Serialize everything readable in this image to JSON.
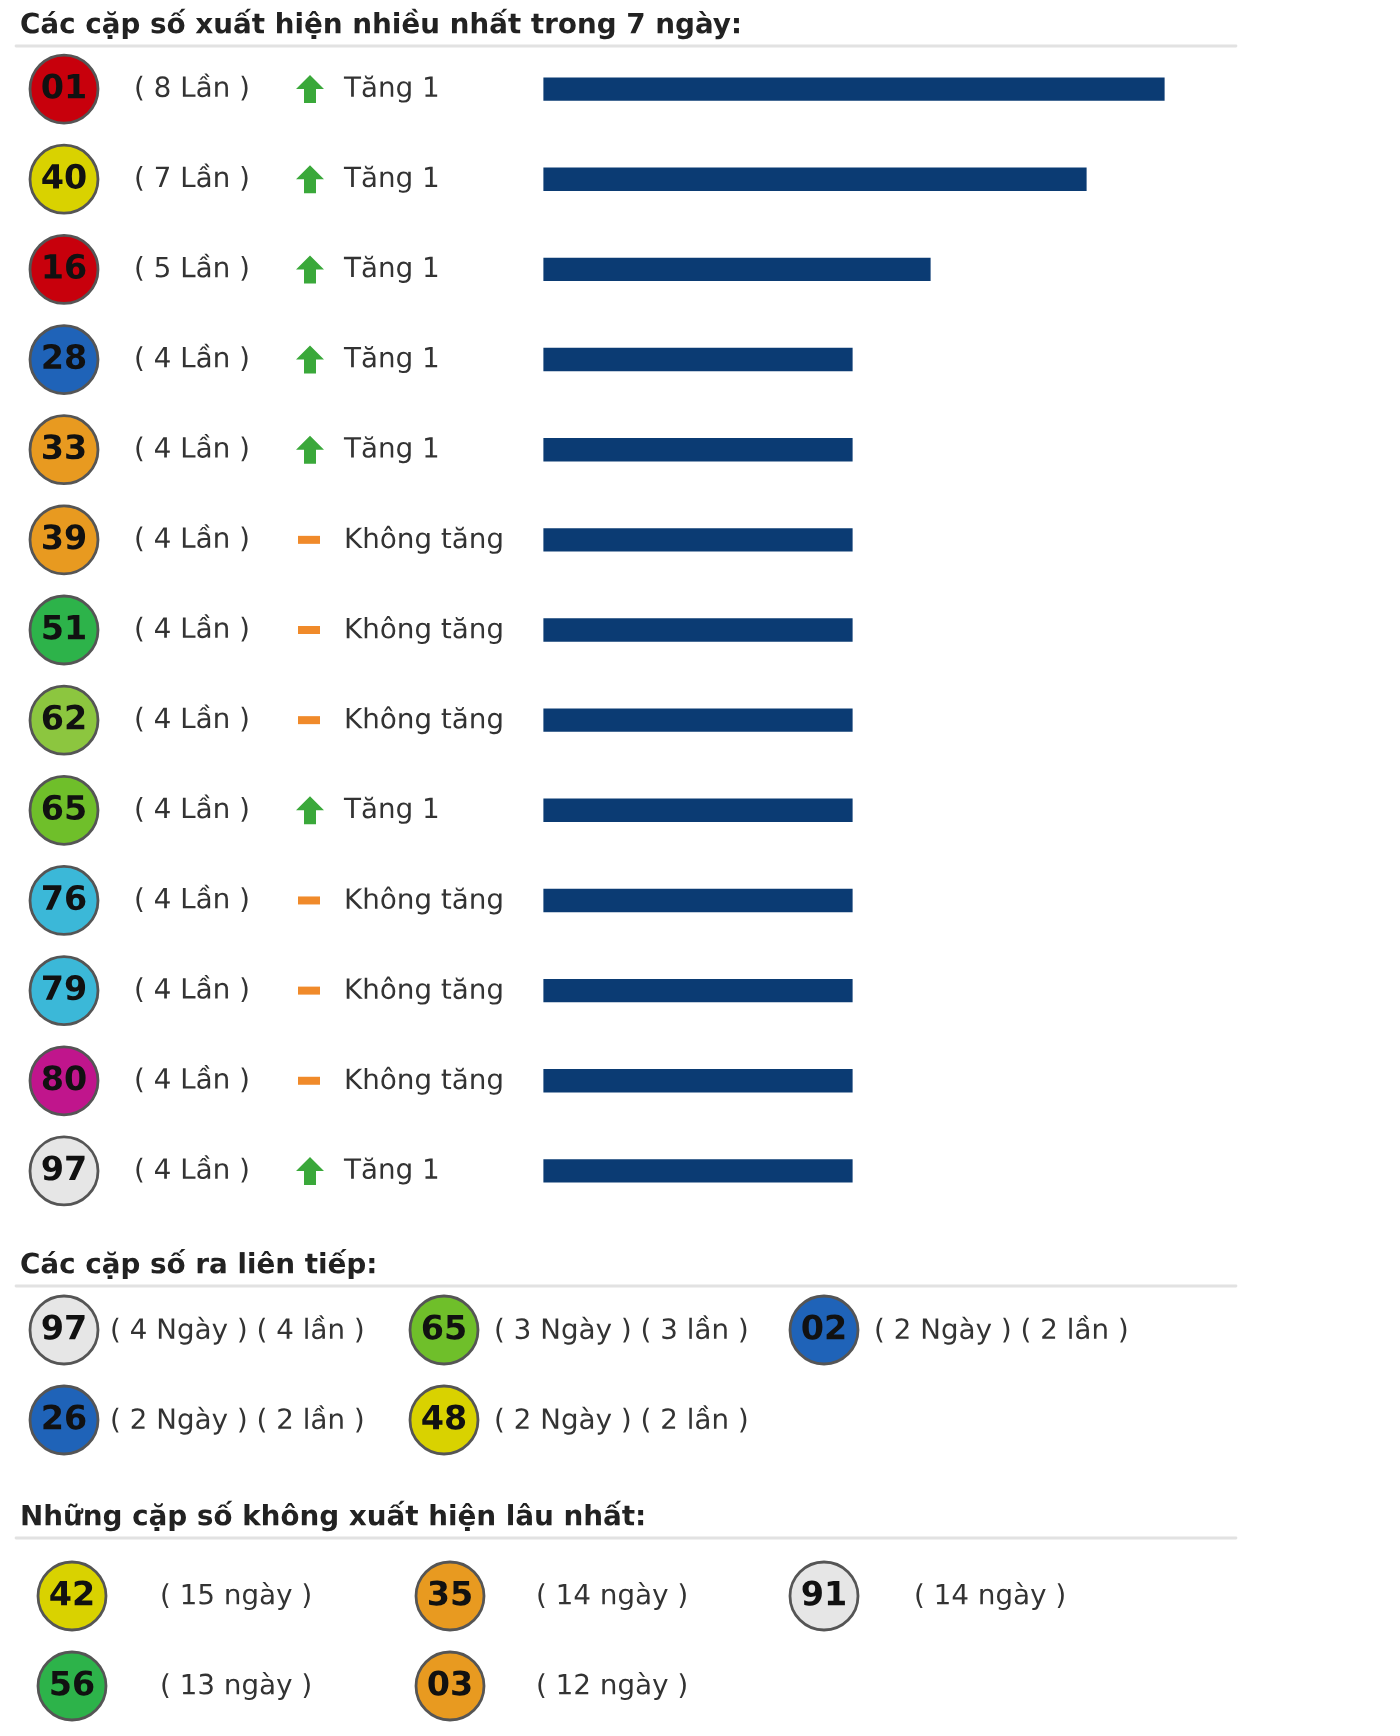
{
  "chart_data": [
    {
      "type": "bar",
      "orientation": "horizontal",
      "title": "Các cặp số xuất hiện nhiều nhất trong 7 ngày:",
      "categories": [
        "01",
        "40",
        "16",
        "28",
        "33",
        "39",
        "51",
        "62",
        "65",
        "76",
        "79",
        "80",
        "97"
      ],
      "values": [
        8,
        7,
        5,
        4,
        4,
        4,
        4,
        4,
        4,
        4,
        4,
        4,
        4
      ],
      "value_labels": [
        "( 8 Lần )",
        "( 7 Lần )",
        "( 5 Lần )",
        "( 4 Lần )",
        "( 4 Lần )",
        "( 4 Lần )",
        "( 4 Lần )",
        "( 4 Lần )",
        "( 4 Lần )",
        "( 4 Lần )",
        "( 4 Lần )",
        "( 4 Lần )",
        "( 4 Lần )"
      ],
      "color": "#0b3b73",
      "annotations": [
        "Tăng 1",
        "Tăng 1",
        "Tăng 1",
        "Tăng 1",
        "Tăng 1",
        "Không tăng",
        "Không tăng",
        "Không tăng",
        "Tăng 1",
        "Không tăng",
        "Không tăng",
        "Không tăng",
        "Tăng 1"
      ]
    },
    {
      "type": "other",
      "title": "Các cặp số ra liên tiếp:",
      "categories": [
        "97",
        "65",
        "02",
        "26",
        "48"
      ],
      "annotations": [
        "( 4 Ngày ) ( 4 lần )",
        "( 3 Ngày ) ( 3 lần )",
        "( 2 Ngày ) ( 2 lần )",
        "( 2 Ngày ) ( 2 lần )",
        "( 2 Ngày ) ( 2 lần )"
      ]
    },
    {
      "type": "other",
      "title": "Những cặp số không xuất hiện lâu nhất:",
      "categories": [
        "42",
        "35",
        "91",
        "56",
        "03"
      ],
      "annotations": [
        "( 15 ngày )",
        "( 14 ngày )",
        "( 14 ngày )",
        "( 13 ngày )",
        "( 12 ngày )"
      ]
    }
  ]
}
